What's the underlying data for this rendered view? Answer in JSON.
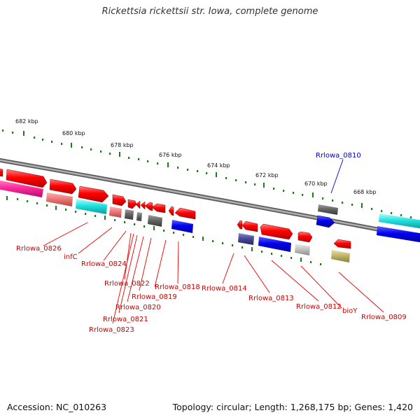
{
  "title": "Rickettsia rickettsii str. Iowa, complete genome",
  "footer": {
    "accession": "Accession: NC_010263",
    "info": "Topology: circular; Length: 1,268,175 bp; Genes: 1,420"
  },
  "colors": {
    "forward_gene": "#ff0000",
    "reverse_gene": "#0000ee",
    "highlight_label": "#0000cc",
    "gene_label": "#cc0000",
    "tick": "#1f7a1f",
    "backbone": "#8a8a8a"
  },
  "axis": {
    "unit": "kbp",
    "ticks": [
      {
        "kbp": 682,
        "label": "682 kbp"
      },
      {
        "kbp": 680,
        "label": "680 kbp"
      },
      {
        "kbp": 678,
        "label": "678 kbp"
      },
      {
        "kbp": 676,
        "label": "676 kbp"
      },
      {
        "kbp": 674,
        "label": "674 kbp"
      },
      {
        "kbp": 672,
        "label": "672 kbp"
      },
      {
        "kbp": 670,
        "label": "670 kbp"
      },
      {
        "kbp": 668,
        "label": "668 kbp"
      }
    ]
  },
  "genes": [
    {
      "label": "Rrlowa_0826",
      "strand": "forward"
    },
    {
      "label": "infC",
      "strand": "forward"
    },
    {
      "label": "Rrlowa_0824",
      "strand": "forward"
    },
    {
      "label": "Rrlowa_0822",
      "strand": "forward"
    },
    {
      "label": "Rrlowa_0823",
      "strand": "forward"
    },
    {
      "label": "Rrlowa_0821",
      "strand": "forward"
    },
    {
      "label": "Rrlowa_0820",
      "strand": "forward"
    },
    {
      "label": "Rrlowa_0819",
      "strand": "forward"
    },
    {
      "label": "Rrlowa_0818",
      "strand": "forward"
    },
    {
      "label": "Rrlowa_0814",
      "strand": "forward"
    },
    {
      "label": "Rrlowa_0813",
      "strand": "forward"
    },
    {
      "label": "Rrlowa_0812",
      "strand": "forward"
    },
    {
      "label": "bioY",
      "strand": "forward"
    },
    {
      "label": "Rrlowa_0809",
      "strand": "forward"
    },
    {
      "label": "Rrlowa_0810",
      "strand": "reverse"
    }
  ]
}
